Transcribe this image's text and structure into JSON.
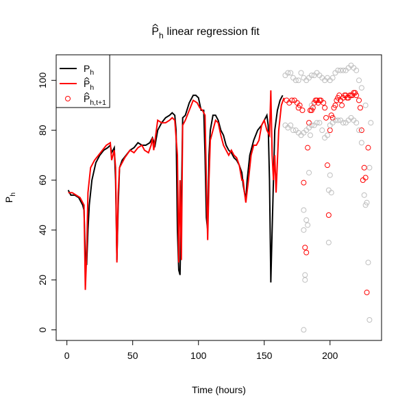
{
  "chart_data": {
    "type": "line",
    "title": {
      "symbol": "P",
      "subscript": "h",
      "text": "linear regression fit"
    },
    "xlabel": "Time (hours)",
    "ylabel": {
      "symbol": "P",
      "subscript": "h"
    },
    "xlim": [
      -8.16,
      239.16
    ],
    "ylim": [
      -4.24,
      110.24
    ],
    "xticks": [
      0,
      50,
      100,
      150,
      200
    ],
    "yticks": [
      0,
      20,
      40,
      60,
      80,
      100
    ],
    "legend": "topleft",
    "series": [
      {
        "name": "P",
        "subscript": "h",
        "hat": false,
        "color": "#000000",
        "style": "line",
        "x": [
          1,
          3,
          6,
          9,
          12,
          13,
          14,
          15,
          16,
          17,
          19,
          22,
          25,
          28,
          31,
          33,
          34,
          35,
          36,
          37,
          38,
          39,
          40,
          42,
          45,
          48,
          51,
          54,
          57,
          60,
          63,
          65,
          67,
          69,
          72,
          75,
          78,
          80,
          82,
          83,
          84,
          85,
          86,
          87,
          88,
          90,
          93,
          96,
          98,
          100,
          102,
          104,
          105,
          106,
          107,
          108,
          109,
          111,
          113,
          115,
          117,
          119,
          121,
          123,
          125,
          127,
          129,
          131,
          133,
          134,
          135,
          136,
          137,
          139,
          142,
          145,
          148,
          150,
          152,
          153,
          154,
          155,
          156,
          157,
          158,
          160,
          162,
          164
        ],
        "values": [
          56,
          54,
          54,
          53,
          50,
          48,
          30,
          26,
          40,
          50,
          60,
          67,
          70,
          72,
          73,
          74,
          71,
          72,
          73,
          60,
          28,
          50,
          65,
          68,
          70,
          72,
          73,
          75,
          74,
          74,
          75,
          77,
          74,
          80,
          83,
          85,
          86,
          87,
          86,
          80,
          40,
          24,
          22,
          50,
          85,
          86,
          91,
          94,
          94,
          93,
          88,
          88,
          70,
          45,
          40,
          70,
          80,
          86,
          86,
          84,
          80,
          78,
          74,
          72,
          71,
          69,
          68,
          66,
          63,
          58,
          55,
          52,
          60,
          70,
          76,
          80,
          82,
          84,
          86,
          82,
          60,
          19,
          40,
          60,
          80,
          88,
          92,
          94
        ]
      },
      {
        "name": "P",
        "subscript": "h",
        "hat": true,
        "color": "#ff0000",
        "style": "line",
        "x": [
          1,
          4,
          7,
          10,
          13,
          14,
          15,
          16,
          18,
          21,
          24,
          27,
          30,
          33,
          34,
          36,
          37,
          38,
          39,
          40,
          44,
          48,
          51,
          54,
          57,
          59,
          62,
          64,
          65,
          66,
          69,
          72,
          75,
          78,
          80,
          82,
          84,
          85,
          86,
          87,
          88,
          90,
          93,
          96,
          99,
          101,
          103,
          105,
          106,
          107,
          108,
          109,
          111,
          113,
          115,
          117,
          119,
          121,
          123,
          125,
          127,
          129,
          131,
          133,
          134,
          135,
          136,
          138,
          140,
          142,
          144,
          146,
          148,
          150,
          152,
          154,
          155,
          156,
          157,
          158,
          159,
          161,
          163,
          165
        ],
        "values": [
          55,
          55,
          54,
          53,
          50,
          16,
          30,
          55,
          65,
          68,
          70,
          72,
          74,
          75,
          68,
          72,
          65,
          27,
          55,
          65,
          69,
          72,
          71,
          73,
          74,
          72,
          71,
          74,
          77,
          72,
          84,
          83,
          83,
          84,
          85,
          84,
          70,
          27,
          60,
          28,
          82,
          84,
          88,
          92,
          91,
          89,
          88,
          86,
          60,
          36,
          60,
          76,
          80,
          84,
          83,
          78,
          74,
          72,
          70,
          72,
          70,
          69,
          66,
          60,
          60,
          55,
          51,
          60,
          70,
          74,
          74,
          76,
          82,
          84,
          80,
          78,
          96,
          70,
          60,
          70,
          55,
          80,
          90,
          93
        ]
      },
      {
        "name": "P",
        "subscript": "h,t+1",
        "hat": true,
        "color": "#ff0000",
        "style": "points",
        "x": [
          167,
          169,
          171,
          173,
          175,
          176,
          177,
          179,
          180,
          181,
          182,
          183,
          184,
          185,
          186,
          187,
          188,
          189,
          190,
          191,
          192,
          193,
          195,
          196,
          197,
          198,
          199,
          200,
          201,
          202,
          203,
          204,
          205,
          206,
          207,
          208,
          209,
          210,
          211,
          212,
          213,
          214,
          215,
          216,
          217,
          218,
          219,
          220,
          222,
          223,
          224,
          225,
          226,
          227,
          228,
          229
        ],
        "values": [
          92,
          91,
          92,
          92,
          91,
          89,
          90,
          88,
          59,
          33,
          31,
          73,
          83,
          88,
          88,
          89,
          91,
          92,
          92,
          91,
          92,
          92,
          91,
          89,
          85,
          66,
          46,
          80,
          86,
          85,
          89,
          90,
          92,
          93,
          94,
          92,
          90,
          93,
          94,
          94,
          93,
          93,
          94,
          94,
          94,
          95,
          95,
          94,
          92,
          89,
          80,
          60,
          65,
          61,
          15,
          73
        ]
      },
      {
        "color": "#bebebe",
        "style": "points",
        "x": [
          166,
          168,
          170,
          172,
          174,
          176,
          178,
          180,
          182,
          184,
          186,
          188,
          190,
          192,
          194,
          196,
          198,
          200,
          202,
          204,
          206,
          208,
          210,
          212,
          214,
          216,
          218,
          220,
          222,
          224,
          166,
          168,
          170,
          172,
          174,
          176,
          178,
          180,
          182,
          184,
          186,
          188,
          190,
          192,
          194,
          196,
          198,
          200,
          202,
          204,
          206,
          208,
          210,
          212,
          214,
          216,
          218,
          220,
          222,
          224,
          180,
          180,
          180,
          181,
          181,
          182,
          183,
          184,
          185,
          186,
          199,
          199,
          200,
          201,
          226,
          227,
          228,
          229,
          230,
          230,
          231,
          227
        ],
        "values": [
          102,
          103,
          103,
          101,
          100,
          100,
          103,
          101,
          100,
          101,
          102,
          102,
          103,
          102,
          101,
          100,
          101,
          100,
          101,
          103,
          104,
          104,
          104,
          104,
          105,
          106,
          105,
          104,
          100,
          97,
          82,
          81,
          82,
          80,
          80,
          79,
          78,
          79,
          80,
          81,
          82,
          82,
          83,
          83,
          80,
          77,
          78,
          82,
          83,
          84,
          84,
          84,
          83,
          83,
          84,
          85,
          84,
          83,
          80,
          75,
          48,
          40,
          0,
          22,
          20,
          44,
          42,
          63,
          78,
          90,
          56,
          35,
          62,
          55,
          54,
          50,
          51,
          27,
          4,
          65,
          83,
          90
        ]
      }
    ]
  }
}
